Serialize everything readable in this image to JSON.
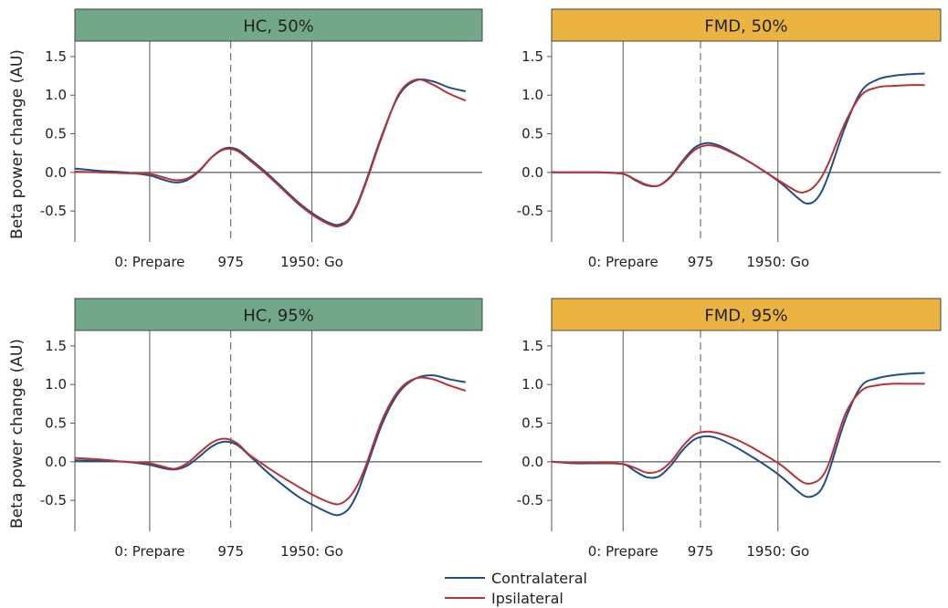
{
  "colors": {
    "hc_strip": "#72a78a",
    "fmd_strip": "#ebb440",
    "contralateral": "#1f4e87",
    "ipsilateral": "#b83234",
    "axis": "#555555",
    "zero_line": "#333333"
  },
  "ylabel": "Beta power change (AU)",
  "legend": {
    "placement": "bottom-center",
    "items": [
      {
        "label": "Contralateral",
        "color": "#1f4e87"
      },
      {
        "label": "Ipsilateral",
        "color": "#b83234"
      }
    ]
  },
  "chart_data": [
    {
      "type": "line",
      "title": "HC, 50%",
      "strip": "hc",
      "xlim": [
        -900,
        4000
      ],
      "ylim": [
        -0.9,
        1.7
      ],
      "yticks": [
        -0.5,
        0.0,
        0.5,
        1.0,
        1.5
      ],
      "ytick_labels": [
        "-0.5",
        "0.0",
        "0.5",
        "1.0",
        "1.5"
      ],
      "xticks": [
        0,
        975,
        1950
      ],
      "xtick_labels": [
        "0: Prepare",
        "975",
        "1950: Go"
      ],
      "vlines": [
        {
          "x": 0,
          "style": "solid"
        },
        {
          "x": 975,
          "style": "dashed"
        },
        {
          "x": 1950,
          "style": "solid"
        }
      ],
      "hline": 0,
      "x": [
        -900,
        -600,
        -300,
        0,
        150,
        300,
        450,
        600,
        750,
        900,
        1050,
        1200,
        1400,
        1600,
        1800,
        2000,
        2200,
        2300,
        2400,
        2500,
        2600,
        2800,
        3000,
        3200,
        3400,
        3600,
        3800
      ],
      "series": [
        {
          "name": "Contralateral",
          "values": [
            0.05,
            0.02,
            0.0,
            -0.04,
            -0.09,
            -0.13,
            -0.1,
            0.02,
            0.2,
            0.31,
            0.3,
            0.18,
            0.0,
            -0.2,
            -0.4,
            -0.56,
            -0.67,
            -0.67,
            -0.6,
            -0.4,
            -0.12,
            0.5,
            1.0,
            1.19,
            1.18,
            1.1,
            1.05
          ]
        },
        {
          "name": "Ipsilateral",
          "values": [
            0.01,
            0.0,
            -0.01,
            -0.02,
            -0.06,
            -0.1,
            -0.08,
            0.03,
            0.2,
            0.3,
            0.28,
            0.16,
            -0.02,
            -0.22,
            -0.42,
            -0.58,
            -0.69,
            -0.69,
            -0.62,
            -0.42,
            -0.14,
            0.48,
            1.02,
            1.2,
            1.14,
            1.02,
            0.93
          ]
        }
      ]
    },
    {
      "type": "line",
      "title": "FMD, 50%",
      "strip": "fmd",
      "xlim": [
        -900,
        4000
      ],
      "ylim": [
        -0.9,
        1.7
      ],
      "yticks": [
        -0.5,
        0.0,
        0.5,
        1.0,
        1.5
      ],
      "ytick_labels": [
        "-0.5",
        "0.0",
        "0.5",
        "1.0",
        "1.5"
      ],
      "xticks": [
        0,
        975,
        1950
      ],
      "xtick_labels": [
        "0: Prepare",
        "975",
        "1950: Go"
      ],
      "vlines": [
        {
          "x": 0,
          "style": "solid"
        },
        {
          "x": 975,
          "style": "dashed"
        },
        {
          "x": 1950,
          "style": "solid"
        }
      ],
      "hline": 0,
      "x": [
        -900,
        -600,
        -300,
        0,
        150,
        300,
        450,
        600,
        750,
        900,
        1050,
        1200,
        1400,
        1600,
        1800,
        2000,
        2200,
        2300,
        2400,
        2500,
        2600,
        2800,
        3000,
        3200,
        3400,
        3600,
        3800
      ],
      "series": [
        {
          "name": "Contralateral",
          "values": [
            0.0,
            0.0,
            0.0,
            -0.02,
            -0.1,
            -0.17,
            -0.17,
            -0.05,
            0.15,
            0.32,
            0.38,
            0.35,
            0.25,
            0.13,
            0.0,
            -0.15,
            -0.33,
            -0.4,
            -0.38,
            -0.25,
            0.0,
            0.6,
            1.05,
            1.2,
            1.25,
            1.27,
            1.28
          ]
        },
        {
          "name": "Ipsilateral",
          "values": [
            0.0,
            0.0,
            0.0,
            -0.02,
            -0.09,
            -0.16,
            -0.17,
            -0.06,
            0.13,
            0.29,
            0.35,
            0.33,
            0.24,
            0.13,
            0.0,
            -0.13,
            -0.25,
            -0.25,
            -0.19,
            -0.06,
            0.15,
            0.65,
            1.0,
            1.1,
            1.12,
            1.13,
            1.13
          ]
        }
      ]
    },
    {
      "type": "line",
      "title": "HC, 95%",
      "strip": "hc",
      "xlim": [
        -900,
        4000
      ],
      "ylim": [
        -0.9,
        1.7
      ],
      "yticks": [
        -0.5,
        0.0,
        0.5,
        1.0,
        1.5
      ],
      "ytick_labels": [
        "-0.5",
        "0.0",
        "0.5",
        "1.0",
        "1.5"
      ],
      "xticks": [
        0,
        975,
        1950
      ],
      "xtick_labels": [
        "0: Prepare",
        "975",
        "1950: Go"
      ],
      "vlines": [
        {
          "x": 0,
          "style": "solid"
        },
        {
          "x": 975,
          "style": "dashed"
        },
        {
          "x": 1950,
          "style": "solid"
        }
      ],
      "hline": 0,
      "x": [
        -900,
        -600,
        -300,
        0,
        150,
        300,
        450,
        600,
        750,
        900,
        1050,
        1200,
        1400,
        1600,
        1800,
        2000,
        2200,
        2300,
        2400,
        2500,
        2600,
        2800,
        3000,
        3200,
        3400,
        3600,
        3800
      ],
      "series": [
        {
          "name": "Contralateral",
          "values": [
            0.02,
            0.01,
            0.0,
            -0.04,
            -0.08,
            -0.1,
            -0.05,
            0.07,
            0.2,
            0.26,
            0.22,
            0.08,
            -0.12,
            -0.3,
            -0.46,
            -0.58,
            -0.68,
            -0.68,
            -0.6,
            -0.4,
            -0.1,
            0.5,
            0.9,
            1.08,
            1.12,
            1.07,
            1.03
          ]
        },
        {
          "name": "Ipsilateral",
          "values": [
            0.05,
            0.03,
            0.0,
            -0.02,
            -0.06,
            -0.09,
            -0.02,
            0.12,
            0.25,
            0.3,
            0.24,
            0.09,
            -0.06,
            -0.2,
            -0.33,
            -0.45,
            -0.54,
            -0.54,
            -0.46,
            -0.3,
            -0.05,
            0.55,
            0.93,
            1.08,
            1.07,
            0.99,
            0.92
          ]
        }
      ]
    },
    {
      "type": "line",
      "title": "FMD, 95%",
      "strip": "fmd",
      "xlim": [
        -900,
        4000
      ],
      "ylim": [
        -0.9,
        1.7
      ],
      "yticks": [
        -0.5,
        0.0,
        0.5,
        1.0,
        1.5
      ],
      "ytick_labels": [
        "-0.5",
        "0.0",
        "0.5",
        "1.0",
        "1.5"
      ],
      "xticks": [
        0,
        975,
        1950
      ],
      "xtick_labels": [
        "0: Prepare",
        "975",
        "1950: Go"
      ],
      "vlines": [
        {
          "x": 0,
          "style": "solid"
        },
        {
          "x": 975,
          "style": "dashed"
        },
        {
          "x": 1950,
          "style": "solid"
        }
      ],
      "hline": 0,
      "x": [
        -900,
        -600,
        -300,
        0,
        150,
        300,
        450,
        600,
        750,
        900,
        1050,
        1200,
        1400,
        1600,
        1800,
        2000,
        2200,
        2300,
        2400,
        2500,
        2600,
        2800,
        3000,
        3200,
        3400,
        3600,
        3800
      ],
      "series": [
        {
          "name": "Contralateral",
          "values": [
            0.0,
            -0.02,
            -0.02,
            -0.03,
            -0.12,
            -0.2,
            -0.19,
            -0.05,
            0.15,
            0.29,
            0.33,
            0.3,
            0.2,
            0.08,
            -0.05,
            -0.2,
            -0.38,
            -0.45,
            -0.44,
            -0.35,
            -0.1,
            0.55,
            0.98,
            1.08,
            1.12,
            1.14,
            1.15
          ]
        },
        {
          "name": "Ipsilateral",
          "values": [
            0.0,
            -0.01,
            -0.01,
            -0.03,
            -0.08,
            -0.14,
            -0.12,
            0.0,
            0.2,
            0.35,
            0.39,
            0.37,
            0.3,
            0.2,
            0.08,
            -0.05,
            -0.22,
            -0.28,
            -0.27,
            -0.2,
            0.0,
            0.62,
            0.92,
            0.99,
            1.01,
            1.01,
            1.01
          ]
        }
      ]
    }
  ]
}
